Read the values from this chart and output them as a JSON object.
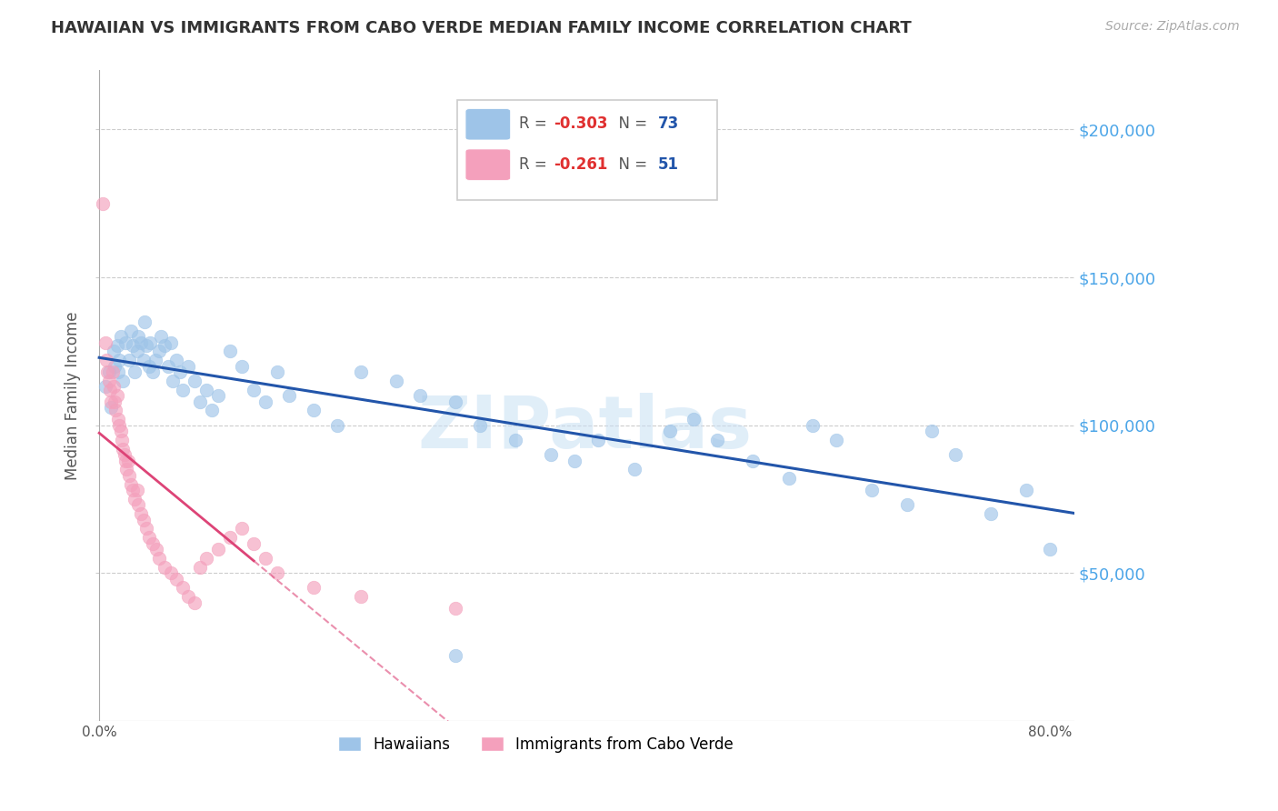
{
  "title": "HAWAIIAN VS IMMIGRANTS FROM CABO VERDE MEDIAN FAMILY INCOME CORRELATION CHART",
  "source": "Source: ZipAtlas.com",
  "ylabel": "Median Family Income",
  "ylim": [
    0,
    220000
  ],
  "xlim": [
    -0.003,
    0.82
  ],
  "color_hawaiian": "#9ec4e8",
  "color_cabo": "#f4a0bc",
  "color_line_hawaiian": "#2255aa",
  "color_line_cabo": "#dd4477",
  "watermark": "ZIPatlas",
  "hawaiian_x": [
    0.005,
    0.008,
    0.01,
    0.012,
    0.013,
    0.015,
    0.016,
    0.017,
    0.018,
    0.02,
    0.022,
    0.025,
    0.027,
    0.028,
    0.03,
    0.032,
    0.033,
    0.035,
    0.037,
    0.038,
    0.04,
    0.042,
    0.043,
    0.045,
    0.047,
    0.05,
    0.052,
    0.055,
    0.058,
    0.06,
    0.062,
    0.065,
    0.068,
    0.07,
    0.075,
    0.08,
    0.085,
    0.09,
    0.095,
    0.1,
    0.11,
    0.12,
    0.13,
    0.14,
    0.15,
    0.16,
    0.18,
    0.2,
    0.22,
    0.25,
    0.27,
    0.3,
    0.32,
    0.35,
    0.38,
    0.4,
    0.42,
    0.45,
    0.48,
    0.5,
    0.52,
    0.55,
    0.58,
    0.6,
    0.62,
    0.65,
    0.68,
    0.7,
    0.72,
    0.75,
    0.78,
    0.8,
    0.3
  ],
  "hawaiian_y": [
    113000,
    118000,
    106000,
    125000,
    120000,
    127000,
    118000,
    122000,
    130000,
    115000,
    128000,
    122000,
    132000,
    127000,
    118000,
    125000,
    130000,
    128000,
    122000,
    135000,
    127000,
    120000,
    128000,
    118000,
    122000,
    125000,
    130000,
    127000,
    120000,
    128000,
    115000,
    122000,
    118000,
    112000,
    120000,
    115000,
    108000,
    112000,
    105000,
    110000,
    125000,
    120000,
    112000,
    108000,
    118000,
    110000,
    105000,
    100000,
    118000,
    115000,
    110000,
    108000,
    100000,
    95000,
    90000,
    88000,
    95000,
    85000,
    98000,
    102000,
    95000,
    88000,
    82000,
    100000,
    95000,
    78000,
    73000,
    98000,
    90000,
    70000,
    78000,
    58000,
    22000
  ],
  "cabo_x": [
    0.003,
    0.005,
    0.006,
    0.007,
    0.008,
    0.009,
    0.01,
    0.011,
    0.012,
    0.013,
    0.014,
    0.015,
    0.016,
    0.017,
    0.018,
    0.019,
    0.02,
    0.021,
    0.022,
    0.023,
    0.024,
    0.025,
    0.027,
    0.028,
    0.03,
    0.032,
    0.033,
    0.035,
    0.037,
    0.04,
    0.042,
    0.045,
    0.048,
    0.05,
    0.055,
    0.06,
    0.065,
    0.07,
    0.075,
    0.08,
    0.085,
    0.09,
    0.1,
    0.11,
    0.12,
    0.13,
    0.14,
    0.15,
    0.18,
    0.22,
    0.3
  ],
  "cabo_y": [
    175000,
    128000,
    122000,
    118000,
    115000,
    112000,
    108000,
    118000,
    113000,
    108000,
    105000,
    110000,
    102000,
    100000,
    98000,
    95000,
    92000,
    90000,
    88000,
    85000,
    88000,
    83000,
    80000,
    78000,
    75000,
    78000,
    73000,
    70000,
    68000,
    65000,
    62000,
    60000,
    58000,
    55000,
    52000,
    50000,
    48000,
    45000,
    42000,
    40000,
    52000,
    55000,
    58000,
    62000,
    65000,
    60000,
    55000,
    50000,
    45000,
    42000,
    38000
  ]
}
